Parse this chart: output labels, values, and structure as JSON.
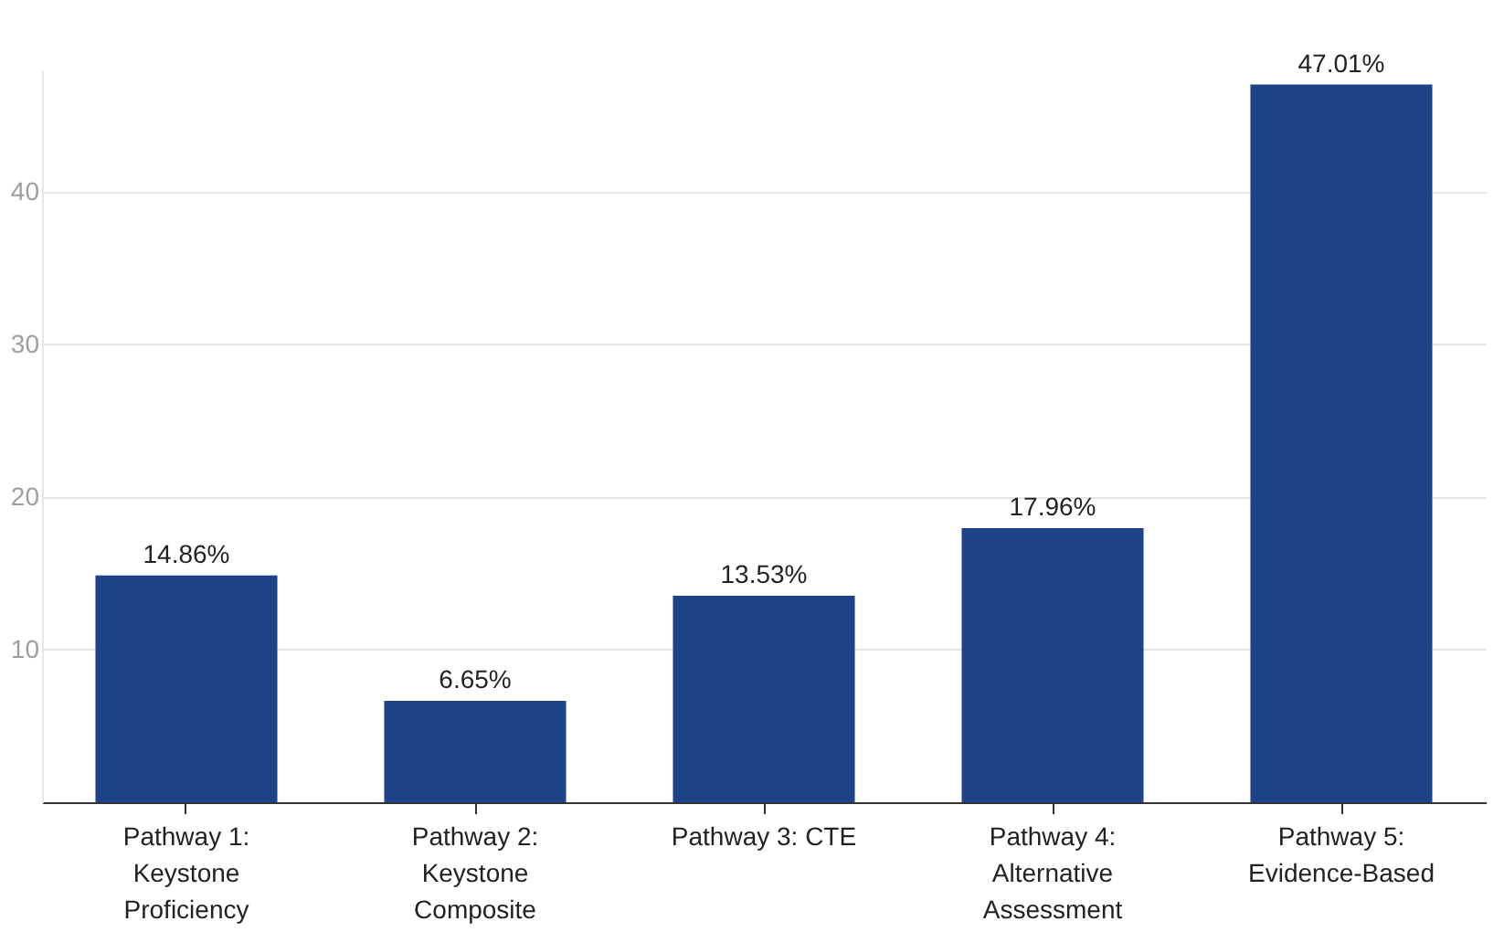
{
  "chart_data": {
    "type": "bar",
    "categories": [
      "Pathway 1: Keystone Proficiency",
      "Pathway 2: Keystone Composite",
      "Pathway 3: CTE",
      "Pathway 4: Alternative Assessment",
      "Pathway 5: Evidence-Based"
    ],
    "values": [
      14.86,
      6.65,
      13.53,
      17.96,
      47.01
    ],
    "value_labels": [
      "14.86%",
      "6.65%",
      "13.53%",
      "17.96%",
      "47.01%"
    ],
    "color": "#1f4389",
    "ylim": [
      0,
      48
    ],
    "yticks": [
      10,
      20,
      30,
      40
    ],
    "grid": "y"
  }
}
